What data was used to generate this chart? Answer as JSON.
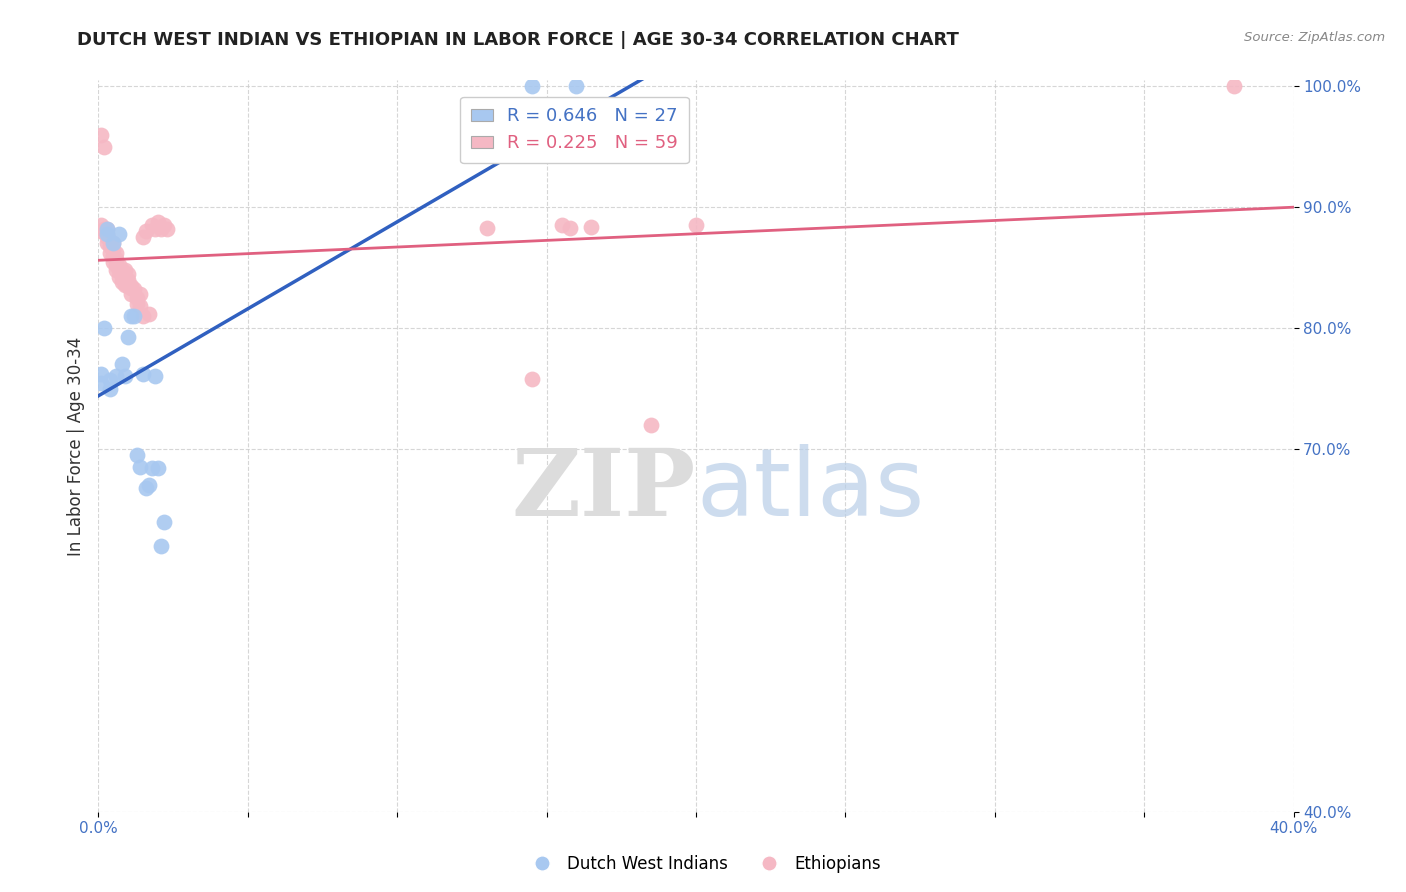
{
  "title": "DUTCH WEST INDIAN VS ETHIOPIAN IN LABOR FORCE | AGE 30-34 CORRELATION CHART",
  "source": "Source: ZipAtlas.com",
  "xlabel": "",
  "ylabel": "In Labor Force | Age 30-34",
  "xlim": [
    0.0,
    0.4
  ],
  "ylim": [
    0.4,
    1.005
  ],
  "xticks": [
    0.0,
    0.05,
    0.1,
    0.15,
    0.2,
    0.25,
    0.3,
    0.35,
    0.4
  ],
  "yticks": [
    0.4,
    0.7,
    0.8,
    0.9,
    1.0
  ],
  "ytick_labels": [
    "40.0%",
    "70.0%",
    "80.0%",
    "90.0%",
    "100.0%"
  ],
  "blue_color": "#A8C8F0",
  "pink_color": "#F5B8C4",
  "blue_line_color": "#3060C0",
  "pink_line_color": "#E06080",
  "blue_R": 0.646,
  "blue_N": 27,
  "pink_R": 0.225,
  "pink_N": 59,
  "blue_x": [
    0.001,
    0.001,
    0.002,
    0.003,
    0.003,
    0.004,
    0.004,
    0.005,
    0.006,
    0.007,
    0.008,
    0.009,
    0.01,
    0.011,
    0.012,
    0.013,
    0.014,
    0.015,
    0.016,
    0.017,
    0.018,
    0.019,
    0.02,
    0.021,
    0.022,
    0.145,
    0.16
  ],
  "blue_y": [
    0.755,
    0.762,
    0.8,
    0.878,
    0.882,
    0.75,
    0.757,
    0.87,
    0.76,
    0.878,
    0.77,
    0.76,
    0.793,
    0.81,
    0.81,
    0.695,
    0.685,
    0.762,
    0.668,
    0.67,
    0.684,
    0.76,
    0.684,
    0.62,
    0.64,
    1.0,
    1.0
  ],
  "pink_x": [
    0.001,
    0.001,
    0.001,
    0.002,
    0.002,
    0.002,
    0.003,
    0.003,
    0.003,
    0.003,
    0.004,
    0.004,
    0.004,
    0.005,
    0.005,
    0.005,
    0.005,
    0.006,
    0.006,
    0.006,
    0.006,
    0.007,
    0.007,
    0.007,
    0.008,
    0.008,
    0.008,
    0.009,
    0.009,
    0.009,
    0.01,
    0.01,
    0.01,
    0.011,
    0.011,
    0.011,
    0.012,
    0.013,
    0.013,
    0.014,
    0.014,
    0.015,
    0.015,
    0.016,
    0.017,
    0.018,
    0.019,
    0.02,
    0.021,
    0.022,
    0.023,
    0.13,
    0.145,
    0.155,
    0.158,
    0.165,
    0.185,
    0.2,
    0.38
  ],
  "pink_y": [
    0.88,
    0.885,
    0.96,
    0.88,
    0.882,
    0.95,
    0.87,
    0.875,
    0.878,
    0.882,
    0.862,
    0.868,
    0.872,
    0.855,
    0.86,
    0.865,
    0.87,
    0.848,
    0.852,
    0.857,
    0.862,
    0.842,
    0.848,
    0.852,
    0.838,
    0.843,
    0.848,
    0.836,
    0.842,
    0.848,
    0.835,
    0.84,
    0.845,
    0.828,
    0.833,
    0.835,
    0.832,
    0.82,
    0.825,
    0.818,
    0.828,
    0.875,
    0.81,
    0.88,
    0.812,
    0.885,
    0.882,
    0.888,
    0.882,
    0.885,
    0.882,
    0.883,
    0.758,
    0.885,
    0.883,
    0.884,
    0.72,
    0.885,
    1.0
  ],
  "watermark_zip": "ZIP",
  "watermark_atlas": "atlas",
  "legend_label_blue": "Dutch West Indians",
  "legend_label_pink": "Ethiopians"
}
